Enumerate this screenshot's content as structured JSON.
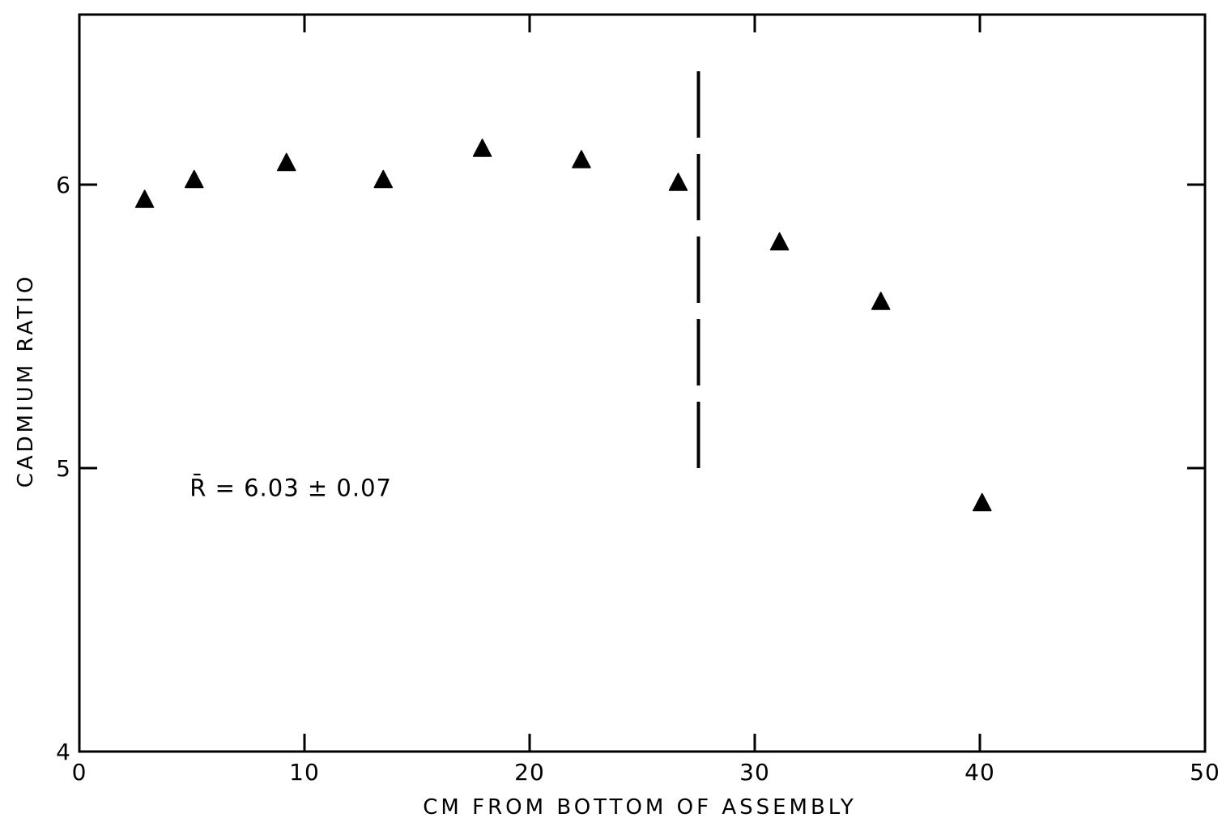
{
  "chart_data": {
    "type": "scatter",
    "title": "",
    "xlabel": "CM FROM BOTTOM OF ASSEMBLY",
    "ylabel": "CADMIUM RATIO",
    "xlim": [
      0,
      50
    ],
    "ylim": [
      4,
      6.6
    ],
    "x_ticks": [
      0,
      10,
      20,
      30,
      40,
      50
    ],
    "x_tick_labels": [
      "0",
      "10",
      "20",
      "30",
      "40",
      "50"
    ],
    "y_ticks": [
      4,
      5,
      6
    ],
    "y_tick_labels": [
      "4",
      "5",
      "6"
    ],
    "grid": false,
    "marker": "filled-triangle",
    "color": "#000000",
    "series": [
      {
        "x": [
          2.9,
          5.1,
          9.2,
          13.5,
          17.9,
          22.3,
          26.6,
          31.1,
          35.6,
          40.1
        ],
        "y": [
          5.95,
          6.02,
          6.08,
          6.02,
          6.13,
          6.09,
          6.01,
          5.8,
          5.59,
          4.88
        ]
      }
    ],
    "reference_line": {
      "orientation": "vertical",
      "x": 27.5,
      "y_range": [
        5.0,
        6.4
      ],
      "style": "dashed"
    },
    "annotation": {
      "text": "R̄ = 6.03 ± 0.07",
      "x": 4.9,
      "y": 4.93
    }
  }
}
